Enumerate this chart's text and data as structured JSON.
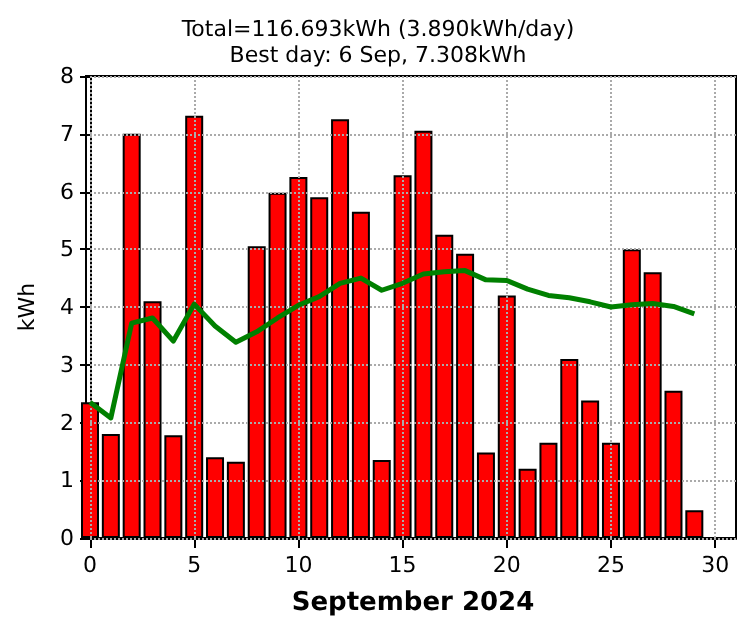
{
  "chart_data": {
    "type": "bar",
    "title": "Total=116.693kWh (3.890kWh/day)",
    "subtitle": "Best day: 6 Sep, 7.308kWh",
    "xlabel": "September 2024",
    "ylabel": "kWh",
    "x": [
      0,
      1,
      2,
      3,
      4,
      5,
      6,
      7,
      8,
      9,
      10,
      11,
      12,
      13,
      14,
      15,
      16,
      17,
      18,
      19,
      20,
      21,
      22,
      23,
      24,
      25,
      26,
      27,
      28,
      29
    ],
    "series": [
      {
        "color": "#ff0000",
        "values": [
          2.35,
          1.8,
          7.0,
          4.1,
          1.78,
          7.31,
          1.4,
          1.32,
          5.05,
          5.98,
          6.25,
          5.9,
          7.25,
          5.65,
          1.35,
          6.28,
          7.05,
          5.25,
          4.92,
          1.48,
          4.2,
          1.2,
          1.65,
          3.1,
          2.38,
          1.65,
          5.0,
          4.6,
          2.55,
          0.48
        ]
      },
      {
        "type": "line",
        "color": "#008000",
        "values": [
          2.35,
          2.08,
          3.72,
          3.81,
          3.41,
          4.05,
          3.67,
          3.39,
          3.57,
          3.81,
          4.03,
          4.18,
          4.41,
          4.5,
          4.29,
          4.41,
          4.57,
          4.61,
          4.63,
          4.47,
          4.46,
          4.31,
          4.2,
          4.16,
          4.09,
          4.0,
          4.04,
          4.06,
          4.01,
          3.88
        ]
      }
    ],
    "xlim": [
      0,
      31
    ],
    "xticks": [
      0,
      5,
      10,
      15,
      20,
      25,
      30
    ],
    "ylim": [
      0,
      8
    ],
    "yticks": [
      0,
      1,
      2,
      3,
      4,
      5,
      6,
      7,
      8
    ],
    "grid": true,
    "marker": "none",
    "line_style": "solid"
  }
}
